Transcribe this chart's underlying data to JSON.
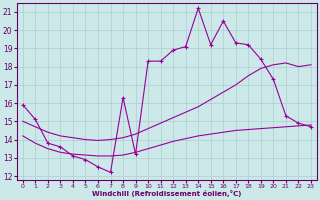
{
  "xlabel": "Windchill (Refroidissement éolien,°C)",
  "x_ticks": [
    0,
    1,
    2,
    3,
    4,
    5,
    6,
    7,
    8,
    9,
    10,
    11,
    12,
    13,
    14,
    15,
    16,
    17,
    18,
    19,
    20,
    21,
    22,
    23
  ],
  "ylim": [
    11.8,
    21.5
  ],
  "xlim": [
    -0.5,
    23.5
  ],
  "yticks": [
    12,
    13,
    14,
    15,
    16,
    17,
    18,
    19,
    20,
    21
  ],
  "bg_color": "#cde8e8",
  "grid_color": "#aacfcf",
  "line_color": "#990099",
  "line1_x": [
    0,
    1,
    2,
    3,
    4,
    5,
    6,
    7,
    8,
    9,
    10,
    11,
    12,
    13,
    14,
    15,
    16,
    17,
    18,
    19,
    20,
    21,
    22,
    23
  ],
  "line1_y": [
    15.9,
    15.1,
    13.8,
    13.6,
    13.1,
    12.9,
    12.5,
    12.2,
    16.3,
    13.2,
    18.3,
    18.3,
    18.9,
    19.1,
    21.2,
    19.2,
    20.5,
    19.3,
    19.2,
    18.4,
    17.3,
    15.3,
    14.9,
    14.7
  ],
  "line2_x": [
    0,
    1,
    2,
    3,
    4,
    5,
    6,
    7,
    8,
    9,
    10,
    11,
    12,
    13,
    14,
    15,
    16,
    17,
    18,
    19,
    20,
    21,
    22,
    23
  ],
  "line2_y": [
    15.0,
    14.7,
    14.4,
    14.2,
    14.1,
    14.0,
    13.95,
    14.0,
    14.1,
    14.3,
    14.6,
    14.9,
    15.2,
    15.5,
    15.8,
    16.2,
    16.6,
    17.0,
    17.5,
    17.9,
    18.1,
    18.2,
    18.0,
    18.1
  ],
  "line3_x": [
    0,
    1,
    2,
    3,
    4,
    5,
    6,
    7,
    8,
    9,
    10,
    11,
    12,
    13,
    14,
    15,
    16,
    17,
    18,
    19,
    20,
    21,
    22,
    23
  ],
  "line3_y": [
    14.2,
    13.8,
    13.5,
    13.3,
    13.2,
    13.15,
    13.1,
    13.1,
    13.15,
    13.3,
    13.5,
    13.7,
    13.9,
    14.05,
    14.2,
    14.3,
    14.4,
    14.5,
    14.55,
    14.6,
    14.65,
    14.7,
    14.75,
    14.8
  ]
}
